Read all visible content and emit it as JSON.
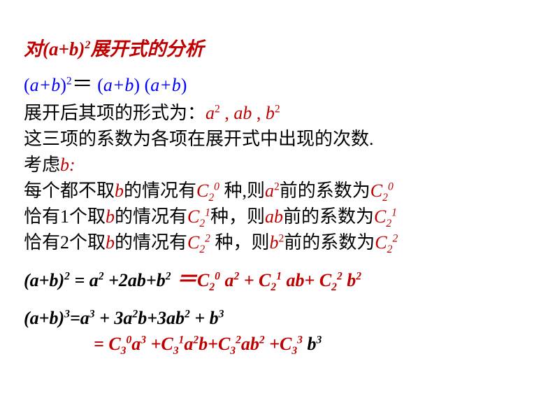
{
  "title_fontsize": 27,
  "body_fontsize": 26,
  "colors": {
    "background": "#ffffff",
    "red": "#c00000",
    "blue": "#0000ff",
    "black": "#000000"
  },
  "title": {
    "t1": "对(",
    "t2": "a+b",
    "t3": ")",
    "t4": "2",
    "t5": "展开式的分析"
  },
  "l1": {
    "a": "(",
    "b": "a+b",
    "c": ")",
    "d": "2",
    "eq": "＝",
    "e": "(",
    "f": "a+b",
    "g": ") (",
    "h": "a+b",
    "i": ")"
  },
  "l2": {
    "a": "展开后其项的形式为：",
    "b": "a",
    "c": "2",
    "d": " ,   ",
    "e": "ab",
    "f": " ,   ",
    "g": "b",
    "h": "2"
  },
  "l3": {
    "a": "这三项的系数为各项在展开式中出现的次数."
  },
  "l4": {
    "a": "考虑",
    "b": "b:"
  },
  "l5": {
    "a": "每个都不取",
    "b": "b",
    "c": "的情况有",
    "d": "C",
    "e": "2",
    "f": "0",
    "g": " 种,则",
    "h": "a",
    "i": "2",
    "j": "前的系数为",
    "k": "C",
    "l": "2",
    "m": "0"
  },
  "l6": {
    "a": "恰有1个取",
    "b": "b",
    "c": "的情况有",
    "d": "C",
    "e": "2",
    "f": "1",
    "g": "种，则",
    "h": "ab",
    "i": "前的系数为",
    "j": "C",
    "k": "2",
    "l": "1"
  },
  "l7": {
    "a": "恰有2个取",
    "b": "b",
    "c": "的情况有",
    "d": "C",
    "e": "2",
    "f": "2",
    "g": " 种，则",
    "h": "b",
    "i": "2",
    "j": "前的系数为",
    "k": "C",
    "l": "2",
    "m": "2"
  },
  "l8": {
    "a": "(a+b)",
    "b": "2",
    "c": " =  a",
    "d": "2",
    "e": " +2ab+b",
    "f": "2",
    "g": "  ＝",
    "h": "C",
    "i": "2",
    "j": "0",
    "k": " a",
    "l": "2",
    "m": " + C",
    "n": "2",
    "o": "1",
    "p": " ab+ C",
    "q": "2",
    "r": "2",
    "s": " b",
    "t": "2"
  },
  "l9": {
    "a": "(a+b)",
    "b": "3",
    "c": "=a",
    "d": "3",
    "e": " + 3a",
    "f": "2",
    "g": "b+3ab",
    "h": "2",
    "i": " + b",
    "j": "3"
  },
  "l10": {
    "a": "= C",
    "b": "3",
    "c": "0",
    "d": "a",
    "e": "3",
    "f": " +C",
    "g": "3",
    "h": "1",
    "i": "a",
    "j": "2",
    "k": "b+C",
    "l": "3",
    "m": "2",
    "n": "ab",
    "o": "2",
    "p": " +C",
    "q": "3",
    "r": "3",
    "s": " b",
    "t": "3"
  }
}
